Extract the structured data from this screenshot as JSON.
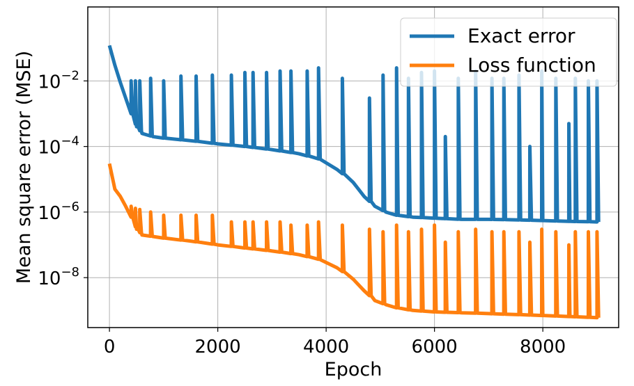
{
  "chart_data": {
    "type": "line",
    "xlabel": "Epoch",
    "ylabel": "Mean square error (MSE)",
    "xlim": [
      -400,
      9400
    ],
    "ylim": [
      3e-10,
      1.8
    ],
    "yscale": "log",
    "grid": true,
    "legend_position": "top-right",
    "x_ticks": [
      0,
      2000,
      4000,
      6000,
      8000
    ],
    "x_tick_labels": [
      "0",
      "2000",
      "4000",
      "6000",
      "8000"
    ],
    "y_ticks": [
      1e-08,
      1e-06,
      0.0001,
      0.01
    ],
    "y_tick_labels": [
      {
        "base": "10",
        "exp": "−8"
      },
      {
        "base": "10",
        "exp": "−6"
      },
      {
        "base": "10",
        "exp": "−4"
      },
      {
        "base": "10",
        "exp": "−2"
      }
    ],
    "series": [
      {
        "name": "Exact error",
        "color": "#1f77b4",
        "baseline": {
          "x": [
            0,
            100,
            200,
            300,
            400,
            500,
            600,
            800,
            1000,
            1500,
            2000,
            2500,
            3000,
            3500,
            3900,
            4200,
            4500,
            4700,
            4900,
            5100,
            5300,
            5600,
            6000,
            6500,
            7000,
            7500,
            8000,
            8500,
            9000
          ],
          "y": [
            0.12,
            0.03,
            0.009,
            0.003,
            0.001,
            0.0004,
            0.00025,
            0.0002,
            0.00018,
            0.00015,
            0.00012,
            0.0001,
            8e-05,
            6e-05,
            4e-05,
            2e-05,
            8e-06,
            3e-06,
            1.5e-06,
            1e-06,
            8e-07,
            7e-07,
            6.5e-07,
            6e-07,
            6e-07,
            5.8e-07,
            5.5e-07,
            5.2e-07,
            5e-07
          ]
        },
        "spikes": {
          "x": [
            400,
            480,
            560,
            760,
            1000,
            1320,
            1600,
            1900,
            2250,
            2500,
            2650,
            2900,
            3150,
            3350,
            3650,
            3860,
            4300,
            4800,
            5050,
            5300,
            5520,
            5760,
            6000,
            6200,
            6440,
            6760,
            7060,
            7280,
            7560,
            7760,
            7980,
            8240,
            8480,
            8600,
            8840,
            9000
          ],
          "y": [
            0.01,
            0.01,
            0.01,
            0.012,
            0.01,
            0.014,
            0.014,
            0.015,
            0.015,
            0.018,
            0.018,
            0.018,
            0.02,
            0.02,
            0.02,
            0.025,
            0.012,
            0.003,
            0.015,
            0.025,
            0.012,
            0.018,
            0.02,
            0.0002,
            0.012,
            0.02,
            0.012,
            0.012,
            0.015,
            0.0001,
            0.02,
            0.012,
            0.0005,
            0.012,
            0.01,
            0.01
          ]
        }
      },
      {
        "name": "Loss function",
        "color": "#ff7f0e",
        "baseline": {
          "x": [
            0,
            100,
            200,
            300,
            400,
            500,
            600,
            800,
            1000,
            1500,
            2000,
            2500,
            3000,
            3500,
            3900,
            4200,
            4500,
            4700,
            4900,
            5100,
            5300,
            5600,
            6000,
            6500,
            7000,
            7500,
            8000,
            8500,
            9000
          ],
          "y": [
            3e-05,
            5e-06,
            3e-06,
            1.5e-06,
            7e-07,
            3e-07,
            2e-07,
            1.8e-07,
            1.6e-07,
            1.3e-07,
            1e-07,
            8e-08,
            6.5e-08,
            5e-08,
            3.5e-08,
            2e-08,
            9e-09,
            4e-09,
            2e-09,
            1.5e-09,
            1.2e-09,
            1e-09,
            9e-10,
            8.5e-10,
            8e-10,
            7.5e-10,
            7e-10,
            6.5e-10,
            6e-10
          ]
        },
        "spikes": {
          "x": [
            400,
            480,
            560,
            760,
            1000,
            1320,
            1600,
            1900,
            2250,
            2500,
            2650,
            2900,
            3150,
            3350,
            3650,
            3860,
            4300,
            4800,
            5050,
            5300,
            5520,
            5760,
            6000,
            6200,
            6440,
            6760,
            7060,
            7280,
            7560,
            7760,
            7980,
            8240,
            8480,
            8600,
            8840,
            9000
          ],
          "y": [
            1.5e-06,
            1.3e-06,
            1.2e-06,
            1e-06,
            8e-07,
            8e-07,
            8e-07,
            8e-07,
            5e-07,
            5e-07,
            5e-07,
            5e-07,
            5e-07,
            4e-07,
            4e-07,
            5e-07,
            4e-07,
            3e-07,
            2.5e-07,
            4e-07,
            2.5e-07,
            3e-07,
            4e-07,
            1.2e-07,
            2.5e-07,
            3e-07,
            2.5e-07,
            2.5e-07,
            2.5e-07,
            1.2e-07,
            3e-07,
            2.5e-07,
            1e-07,
            2.5e-07,
            2.5e-07,
            2.5e-07
          ]
        }
      }
    ]
  }
}
